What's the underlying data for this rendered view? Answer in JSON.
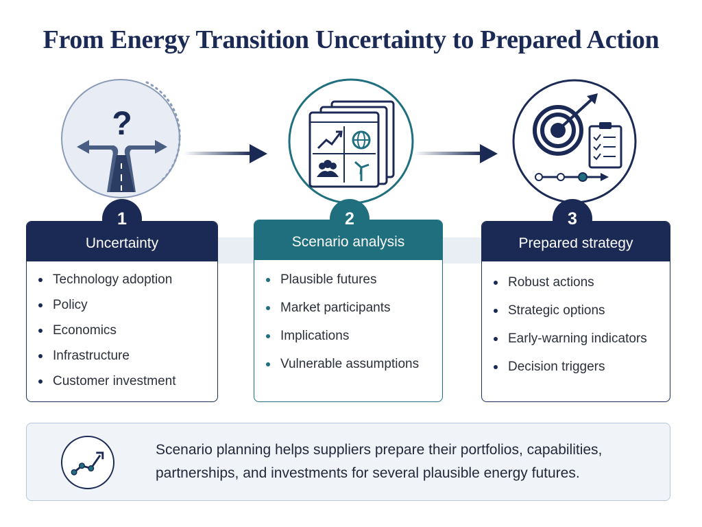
{
  "title": "From Energy Transition Uncertainty to Prepared Action",
  "steps": [
    {
      "number": "1",
      "heading": "Uncertainty",
      "items": [
        "Technology adoption",
        "Policy",
        "Economics",
        "Infrastructure",
        "Customer investment"
      ]
    },
    {
      "number": "2",
      "heading": "Scenario analysis",
      "items": [
        "Plausible futures",
        "Market participants",
        "Implications",
        "Vulnerable assumptions"
      ]
    },
    {
      "number": "3",
      "heading": "Prepared strategy",
      "items": [
        "Robust actions",
        "Strategic options",
        "Early-warning indicators",
        "Decision triggers"
      ]
    }
  ],
  "summary": {
    "line1": "Scenario planning helps suppliers prepare their portfolios, capabilities,",
    "line2": "partnerships, and investments for several plausible energy futures."
  },
  "icons": {
    "step1": "question-fork-road-icon",
    "step2": "scenario-dashboard-icon",
    "step3": "target-checklist-icon",
    "summary": "trend-line-icon"
  },
  "colors": {
    "navy": "#1b2a55",
    "teal": "#1f6f7f",
    "band": "#e9eef5",
    "summary_bg": "#f0f4f9"
  }
}
